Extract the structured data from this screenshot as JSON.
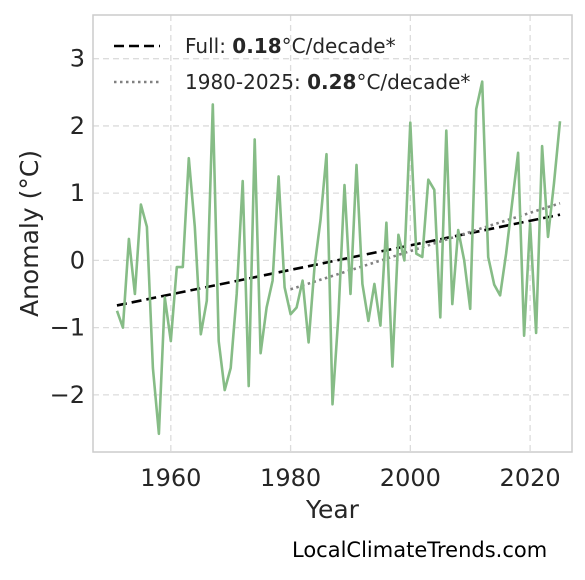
{
  "chart_data": {
    "type": "line",
    "xlabel": "Year",
    "ylabel": "Anomaly (°C)",
    "xlim": [
      1947,
      2027
    ],
    "ylim": [
      -2.85,
      3.65
    ],
    "xticks": [
      1960,
      1980,
      2000,
      2020
    ],
    "yticks": [
      -2,
      -1,
      0,
      1,
      2,
      3
    ],
    "ytick_labels": [
      "−2",
      "−1",
      "0",
      "1",
      "2",
      "3"
    ],
    "grid": true,
    "legend_position": "top-left",
    "series": [
      {
        "color": "#86bc86",
        "x": [
          1951,
          1952,
          1953,
          1954,
          1955,
          1956,
          1957,
          1958,
          1959,
          1960,
          1961,
          1962,
          1963,
          1964,
          1965,
          1966,
          1967,
          1968,
          1969,
          1970,
          1971,
          1972,
          1973,
          1974,
          1975,
          1976,
          1977,
          1978,
          1979,
          1980,
          1981,
          1982,
          1983,
          1984,
          1985,
          1986,
          1987,
          1988,
          1989,
          1990,
          1991,
          1992,
          1993,
          1994,
          1995,
          1996,
          1997,
          1998,
          1999,
          2000,
          2001,
          2002,
          2003,
          2004,
          2005,
          2006,
          2007,
          2008,
          2009,
          2010,
          2011,
          2012,
          2013,
          2014,
          2015,
          2016,
          2017,
          2018,
          2019,
          2020,
          2021,
          2022,
          2023,
          2024,
          2025
        ],
        "values": [
          -0.75,
          -1.0,
          0.32,
          -0.5,
          0.83,
          0.5,
          -1.6,
          -2.58,
          -0.55,
          -1.2,
          -0.1,
          -0.1,
          1.52,
          0.5,
          -1.1,
          -0.6,
          2.32,
          -1.2,
          -1.93,
          -1.6,
          -0.5,
          1.18,
          -1.87,
          1.8,
          -1.38,
          -0.7,
          -0.3,
          1.25,
          -0.4,
          -0.8,
          -0.7,
          -0.3,
          -1.22,
          -0.1,
          0.6,
          1.58,
          -2.14,
          -0.8,
          1.12,
          -0.5,
          1.42,
          -0.35,
          -0.9,
          -0.35,
          -0.97,
          0.56,
          -1.58,
          0.38,
          0.0,
          2.05,
          0.1,
          0.05,
          1.2,
          1.05,
          -0.85,
          1.93,
          -0.65,
          0.45,
          0.0,
          -0.72,
          2.25,
          2.66,
          0.05,
          -0.36,
          -0.52,
          0.1,
          0.85,
          1.6,
          -1.12,
          0.55,
          -1.08,
          1.7,
          0.35,
          1.15,
          2.07
        ]
      }
    ],
    "trends": [
      {
        "label_prefix": "Full: ",
        "label_value": "0.18",
        "label_suffix": "°C/decade*",
        "color": "#000000",
        "style": "dashed",
        "x": [
          1951,
          2025
        ],
        "values": [
          -0.67,
          0.68
        ]
      },
      {
        "label_prefix": "1980-2025: ",
        "label_value": "0.28",
        "label_suffix": "°C/decade*",
        "color": "#808080",
        "style": "dotted",
        "x": [
          1980,
          2025
        ],
        "values": [
          -0.43,
          0.85
        ]
      }
    ]
  },
  "source_text": "LocalClimateTrends.com"
}
